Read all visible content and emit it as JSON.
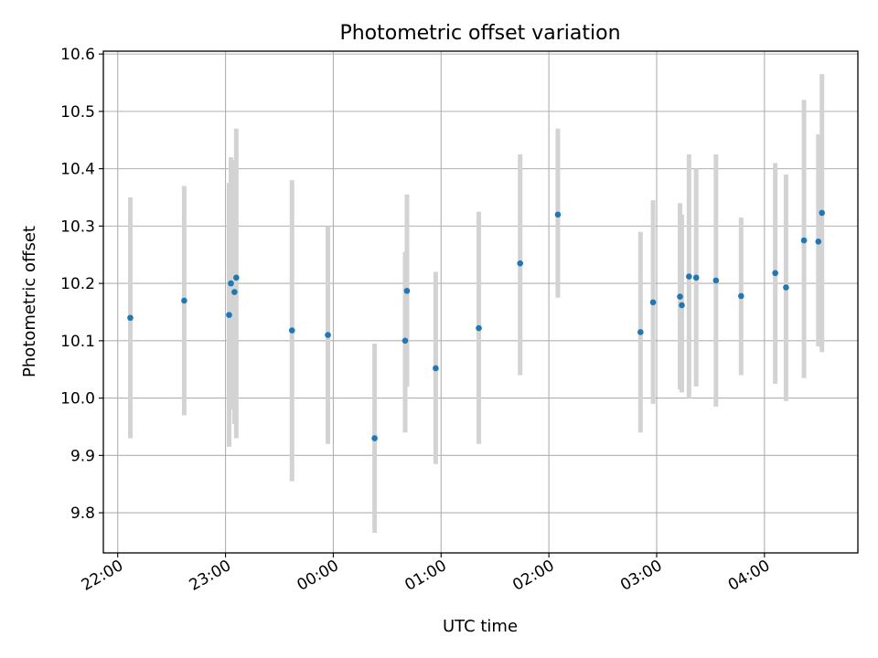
{
  "chart_data": {
    "type": "scatter",
    "title": "Photometric offset variation",
    "xlabel": "UTC time",
    "ylabel": "Photometric offset",
    "xlim": [
      "21:52",
      "04:52"
    ],
    "ylim": [
      9.73,
      10.605
    ],
    "grid": true,
    "x_ticks": [
      "22:00",
      "23:00",
      "00:00",
      "01:00",
      "02:00",
      "03:00",
      "04:00"
    ],
    "y_ticks": [
      9.8,
      9.9,
      10.0,
      10.1,
      10.2,
      10.3,
      10.4,
      10.5,
      10.6
    ],
    "y_tick_labels": [
      "9.8",
      "9.9",
      "10.0",
      "10.1",
      "10.2",
      "10.3",
      "10.4",
      "10.5",
      "10.6"
    ],
    "point_color": "#1f77b4",
    "errorbar_color": "#d3d3d3",
    "series": [
      {
        "points": [
          {
            "x": "22:07",
            "y": 10.14,
            "lo": 9.93,
            "hi": 10.35
          },
          {
            "x": "22:37",
            "y": 10.17,
            "lo": 9.97,
            "hi": 10.37
          },
          {
            "x": "23:02",
            "y": 10.145,
            "lo": 9.915,
            "hi": 10.375
          },
          {
            "x": "23:03",
            "y": 10.2,
            "lo": 9.98,
            "hi": 10.42
          },
          {
            "x": "23:05",
            "y": 10.185,
            "lo": 9.955,
            "hi": 10.415
          },
          {
            "x": "23:06",
            "y": 10.21,
            "lo": 9.93,
            "hi": 10.47
          },
          {
            "x": "23:37",
            "y": 10.118,
            "lo": 9.855,
            "hi": 10.38
          },
          {
            "x": "23:57",
            "y": 10.11,
            "lo": 9.92,
            "hi": 10.3
          },
          {
            "x": "00:23",
            "y": 9.93,
            "lo": 9.765,
            "hi": 10.095
          },
          {
            "x": "00:40",
            "y": 10.1,
            "lo": 9.94,
            "hi": 10.255
          },
          {
            "x": "00:41",
            "y": 10.187,
            "lo": 10.02,
            "hi": 10.355
          },
          {
            "x": "00:57",
            "y": 10.052,
            "lo": 9.885,
            "hi": 10.22
          },
          {
            "x": "01:21",
            "y": 10.122,
            "lo": 9.92,
            "hi": 10.325
          },
          {
            "x": "01:44",
            "y": 10.235,
            "lo": 10.04,
            "hi": 10.425
          },
          {
            "x": "02:05",
            "y": 10.32,
            "lo": 10.175,
            "hi": 10.47
          },
          {
            "x": "02:51",
            "y": 10.115,
            "lo": 9.94,
            "hi": 10.29
          },
          {
            "x": "02:58",
            "y": 10.167,
            "lo": 9.99,
            "hi": 10.345
          },
          {
            "x": "03:13",
            "y": 10.177,
            "lo": 10.015,
            "hi": 10.34
          },
          {
            "x": "03:14",
            "y": 10.162,
            "lo": 10.01,
            "hi": 10.32
          },
          {
            "x": "03:18",
            "y": 10.212,
            "lo": 10.0,
            "hi": 10.425
          },
          {
            "x": "03:22",
            "y": 10.21,
            "lo": 10.02,
            "hi": 10.4
          },
          {
            "x": "03:33",
            "y": 10.205,
            "lo": 9.985,
            "hi": 10.425
          },
          {
            "x": "03:47",
            "y": 10.178,
            "lo": 10.04,
            "hi": 10.315
          },
          {
            "x": "04:06",
            "y": 10.218,
            "lo": 10.025,
            "hi": 10.41
          },
          {
            "x": "04:12",
            "y": 10.193,
            "lo": 9.995,
            "hi": 10.39
          },
          {
            "x": "04:22",
            "y": 10.275,
            "lo": 10.035,
            "hi": 10.52
          },
          {
            "x": "04:30",
            "y": 10.273,
            "lo": 10.09,
            "hi": 10.46
          },
          {
            "x": "04:32",
            "y": 10.323,
            "lo": 10.08,
            "hi": 10.565
          }
        ]
      }
    ]
  }
}
